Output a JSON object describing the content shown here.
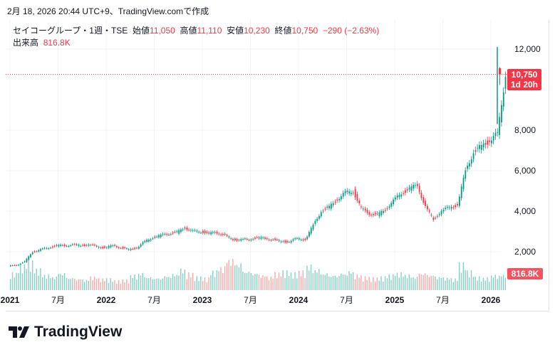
{
  "header": {
    "caption": "2月 18, 2026 20:44 UTC+9、TradingView.comで作成"
  },
  "legend": {
    "symbol": "セイコーグループ・1週・TSE",
    "open_label": "始値",
    "open": "11,050",
    "high_label": "高値",
    "high": "11,110",
    "low_label": "安値",
    "low": "10,230",
    "close_label": "終値",
    "close": "10,750",
    "change": "−290 (−2.63%)",
    "volume_label": "出来高",
    "volume": "816.8K"
  },
  "price_tag": {
    "price": "10,750",
    "countdown": "1d 20h"
  },
  "volume_tag": "816.8K",
  "brand": "TradingView",
  "colors": {
    "up": "#089981",
    "down": "#f23645",
    "grid": "#f0f3fa"
  },
  "chart_data": {
    "type": "candlestick",
    "title": "セイコーグループ・1週・TSE",
    "ylim": [
      1000,
      12500
    ],
    "yticks": [
      2000,
      4000,
      6000,
      8000,
      12000
    ],
    "ytick_labels": [
      "2,000",
      "4,000",
      "6,000",
      "8,000",
      "12,000"
    ],
    "xtick_labels": [
      "2021",
      "7月",
      "2022",
      "7月",
      "2023",
      "7月",
      "2024",
      "7月",
      "2025",
      "7月",
      "2026"
    ],
    "x": [
      "2021-01",
      "2021-02",
      "2021-03",
      "2021-04",
      "2021-05",
      "2021-06",
      "2021-07",
      "2021-08",
      "2021-09",
      "2021-10",
      "2021-11",
      "2021-12",
      "2022-01",
      "2022-02",
      "2022-03",
      "2022-04",
      "2022-05",
      "2022-06",
      "2022-07",
      "2022-08",
      "2022-09",
      "2022-10",
      "2022-11",
      "2022-12",
      "2023-01",
      "2023-02",
      "2023-03",
      "2023-04",
      "2023-05",
      "2023-06",
      "2023-07",
      "2023-08",
      "2023-09",
      "2023-10",
      "2023-11",
      "2023-12",
      "2024-01",
      "2024-02",
      "2024-03",
      "2024-04",
      "2024-05",
      "2024-06",
      "2024-07",
      "2024-08",
      "2024-09",
      "2024-10",
      "2024-11",
      "2024-12",
      "2025-01",
      "2025-02",
      "2025-03",
      "2025-04",
      "2025-05",
      "2025-06",
      "2025-07",
      "2025-08",
      "2025-09",
      "2025-10",
      "2025-11",
      "2025-12",
      "2026-01",
      "2026-02"
    ],
    "close": [
      1350,
      1500,
      2000,
      2100,
      2200,
      2300,
      2300,
      2350,
      2300,
      2350,
      2250,
      2200,
      2300,
      2200,
      2100,
      2200,
      2500,
      2700,
      2800,
      2900,
      2950,
      3200,
      3000,
      3000,
      2900,
      2950,
      2800,
      2600,
      2600,
      2600,
      2700,
      2650,
      2600,
      2500,
      2500,
      2650,
      2600,
      3300,
      4000,
      4200,
      4600,
      4900,
      5000,
      4100,
      3900,
      3800,
      4100,
      4500,
      4900,
      5100,
      5300,
      4200,
      3600,
      4000,
      4200,
      4300,
      6000,
      6900,
      7200,
      7500,
      7800,
      10750
    ],
    "volume_k": [
      900,
      1300,
      1500,
      1100,
      800,
      700,
      900,
      650,
      600,
      550,
      700,
      600,
      600,
      500,
      550,
      800,
      900,
      700,
      650,
      750,
      850,
      1100,
      900,
      700,
      650,
      1000,
      1200,
      1600,
      1400,
      1000,
      900,
      800,
      700,
      900,
      1000,
      900,
      1000,
      1300,
      1100,
      900,
      800,
      900,
      1000,
      800,
      700,
      650,
      700,
      800,
      900,
      800,
      700,
      900,
      800,
      700,
      650,
      600,
      1400,
      1000,
      700,
      650,
      800,
      817
    ]
  }
}
